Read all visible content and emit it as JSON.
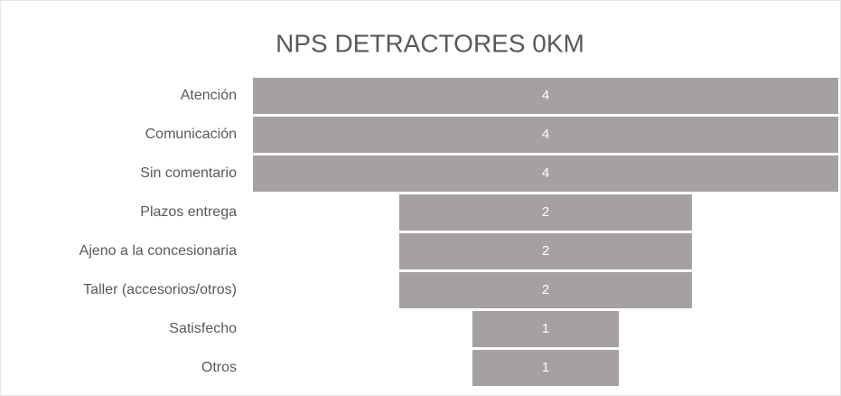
{
  "chart_data": {
    "type": "funnel",
    "title": "NPS DETRACTORES 0KM",
    "categories": [
      "Atención",
      "Comunicación",
      "Sin comentario",
      "Plazos entrega",
      "Ajeno a la concesionaria",
      "Taller (accesorios/otros)",
      "Satisfecho",
      "Otros"
    ],
    "values": [
      4,
      4,
      4,
      2,
      2,
      2,
      1,
      1
    ],
    "color": "#a6a1a1"
  }
}
